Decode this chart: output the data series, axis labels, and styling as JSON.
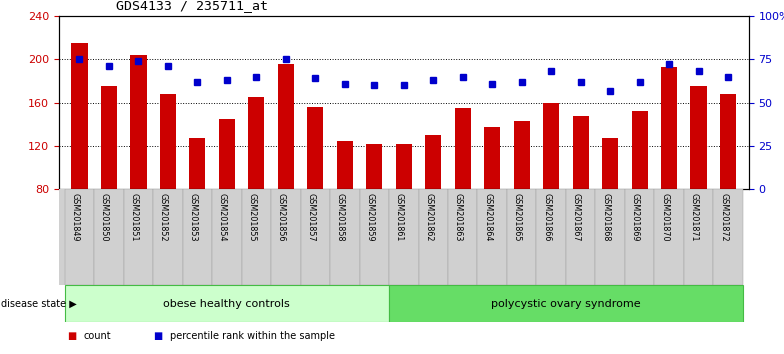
{
  "title": "GDS4133 / 235711_at",
  "samples": [
    "GSM201849",
    "GSM201850",
    "GSM201851",
    "GSM201852",
    "GSM201853",
    "GSM201854",
    "GSM201855",
    "GSM201856",
    "GSM201857",
    "GSM201858",
    "GSM201859",
    "GSM201861",
    "GSM201862",
    "GSM201863",
    "GSM201864",
    "GSM201865",
    "GSM201866",
    "GSM201867",
    "GSM201868",
    "GSM201869",
    "GSM201870",
    "GSM201871",
    "GSM201872"
  ],
  "counts": [
    215,
    175,
    204,
    168,
    127,
    145,
    165,
    196,
    156,
    125,
    122,
    122,
    130,
    155,
    138,
    143,
    160,
    148,
    127,
    152,
    193,
    175,
    168
  ],
  "percentiles": [
    75,
    71,
    74,
    71,
    62,
    63,
    65,
    75,
    64,
    61,
    60,
    60,
    63,
    65,
    61,
    62,
    68,
    62,
    57,
    62,
    72,
    68,
    65
  ],
  "bar_color": "#cc0000",
  "dot_color": "#0000cc",
  "left_ylim": [
    80,
    240
  ],
  "left_yticks": [
    80,
    120,
    160,
    200,
    240
  ],
  "right_ylim": [
    0,
    100
  ],
  "right_yticks": [
    0,
    25,
    50,
    75,
    100
  ],
  "right_yticklabels": [
    "0",
    "25",
    "50",
    "75",
    "100%"
  ],
  "group1_label": "obese healthy controls",
  "group2_label": "polycystic ovary syndrome",
  "group1_count": 11,
  "group2_count": 12,
  "legend_count_label": "count",
  "legend_pct_label": "percentile rank within the sample",
  "disease_state_label": "disease state",
  "group1_color": "#ccffcc",
  "group2_color": "#66dd66",
  "tick_area_color": "#d0d0d0",
  "background_color": "#ffffff",
  "bar_bottom": 80
}
